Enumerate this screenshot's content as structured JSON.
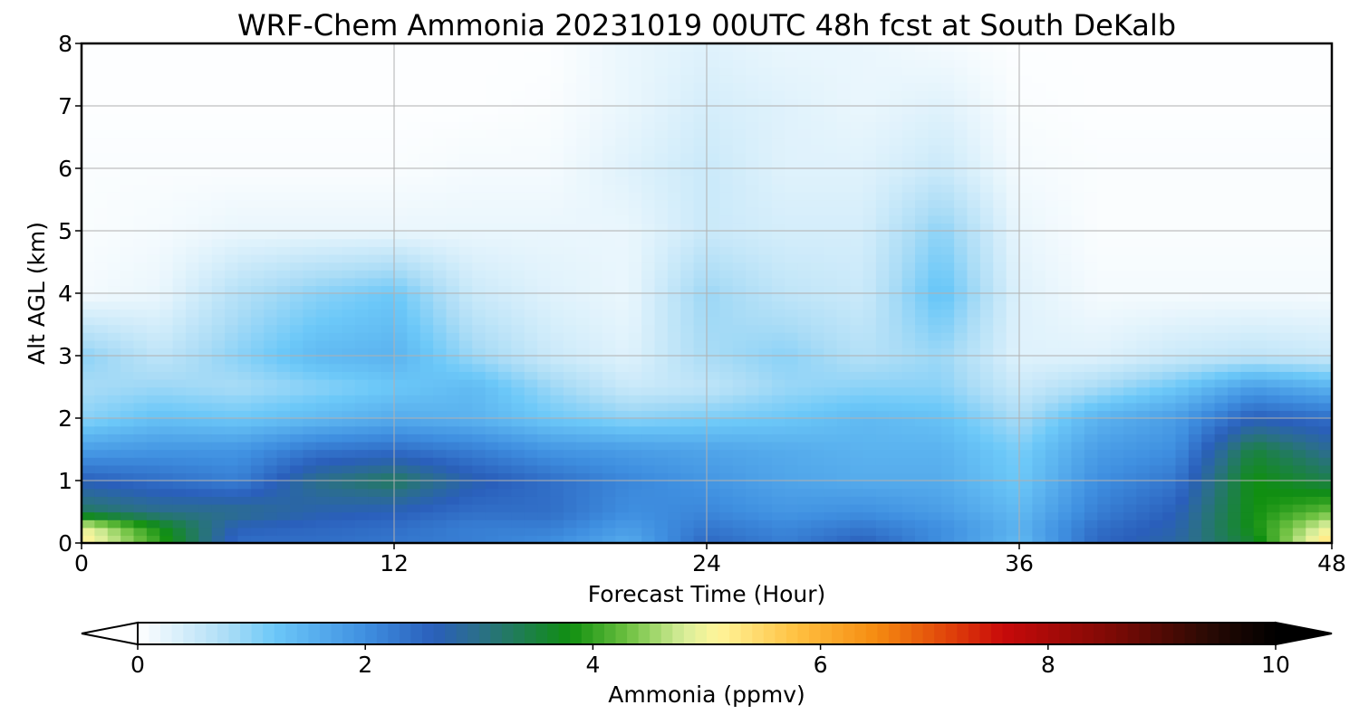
{
  "chart_data": {
    "type": "heatmap",
    "title": "WRF-Chem Ammonia  20231019 00UTC 48h fcst at South DeKalb",
    "xlabel": "Forecast Time (Hour)",
    "ylabel": "Alt AGL (km)",
    "xlim": [
      0,
      48
    ],
    "ylim": [
      0,
      8
    ],
    "xticks": [
      0,
      12,
      24,
      36,
      48
    ],
    "yticks": [
      0,
      1,
      2,
      3,
      4,
      5,
      6,
      7,
      8
    ],
    "grid": true,
    "x": [
      0,
      3,
      6,
      9,
      12,
      15,
      18,
      21,
      24,
      27,
      30,
      33,
      36,
      39,
      42,
      45,
      48
    ],
    "y": [
      0,
      0.25,
      0.5,
      1,
      1.5,
      2,
      2.5,
      3,
      4,
      5,
      6,
      7,
      8
    ],
    "z": [
      [
        5.2,
        4.0,
        2.4,
        2.4,
        2.3,
        2.2,
        2.0,
        1.6,
        2.5,
        2.2,
        2.6,
        2.0,
        1.4,
        2.5,
        2.8,
        3.6,
        5.5
      ],
      [
        5.0,
        3.8,
        2.6,
        2.5,
        2.4,
        2.2,
        2.2,
        1.8,
        2.3,
        2.1,
        2.3,
        2.0,
        1.5,
        2.4,
        2.7,
        3.8,
        5.0
      ],
      [
        3.3,
        3.0,
        3.0,
        2.7,
        2.6,
        2.4,
        2.4,
        2.0,
        2.1,
        1.9,
        2.0,
        1.8,
        1.4,
        2.2,
        2.6,
        3.8,
        4.3
      ],
      [
        2.6,
        2.4,
        2.2,
        3.0,
        3.3,
        2.7,
        2.4,
        2.1,
        1.9,
        1.7,
        1.6,
        1.6,
        1.2,
        2.0,
        2.3,
        3.8,
        3.4
      ],
      [
        1.8,
        1.9,
        1.9,
        2.3,
        2.4,
        2.2,
        1.9,
        1.8,
        1.7,
        1.6,
        1.5,
        1.5,
        1.1,
        1.8,
        2.0,
        3.5,
        2.9
      ],
      [
        1.0,
        1.3,
        1.2,
        1.4,
        1.6,
        1.5,
        1.2,
        1.0,
        1.1,
        1.2,
        1.4,
        1.3,
        0.8,
        1.5,
        1.8,
        2.6,
        2.4
      ],
      [
        0.8,
        0.9,
        0.8,
        1.0,
        1.2,
        1.4,
        0.9,
        0.5,
        0.6,
        0.9,
        1.0,
        1.0,
        0.5,
        0.8,
        1.2,
        1.8,
        1.5
      ],
      [
        1.0,
        0.6,
        1.0,
        1.4,
        1.5,
        0.9,
        0.5,
        0.3,
        0.8,
        1.0,
        0.7,
        0.9,
        0.3,
        0.3,
        0.5,
        0.6,
        0.5
      ],
      [
        0.1,
        0.2,
        0.7,
        1.0,
        1.2,
        0.5,
        0.3,
        0.2,
        0.9,
        0.6,
        0.5,
        1.3,
        0.3,
        0.1,
        0.1,
        0.1,
        0.1
      ],
      [
        0.05,
        0.1,
        0.2,
        0.2,
        0.2,
        0.2,
        0.2,
        0.2,
        0.5,
        0.4,
        0.4,
        1.0,
        0.2,
        0.05,
        0.05,
        0.05,
        0.05
      ],
      [
        0.05,
        0.05,
        0.05,
        0.05,
        0.05,
        0.1,
        0.1,
        0.3,
        0.5,
        0.3,
        0.3,
        0.5,
        0.1,
        0.05,
        0.05,
        0.05,
        0.05
      ],
      [
        0.02,
        0.02,
        0.02,
        0.02,
        0.02,
        0.02,
        0.05,
        0.2,
        0.4,
        0.3,
        0.2,
        0.3,
        0.05,
        0.02,
        0.02,
        0.02,
        0.02
      ],
      [
        0.02,
        0.02,
        0.02,
        0.02,
        0.02,
        0.02,
        0.02,
        0.2,
        0.3,
        0.2,
        0.2,
        0.1,
        0.02,
        0.02,
        0.02,
        0.02,
        0.02
      ]
    ],
    "colorbar": {
      "label": "Ammonia  (ppmv)",
      "min": 0,
      "max": 10,
      "ticks": [
        0,
        2,
        4,
        6,
        8,
        10
      ],
      "extend": "both",
      "colormap": [
        [
          0,
          "#ffffff"
        ],
        [
          0.8,
          "#aadcf6"
        ],
        [
          1.2,
          "#6cc8f8"
        ],
        [
          2.0,
          "#3f8fe0"
        ],
        [
          2.6,
          "#2a5fbb"
        ],
        [
          3.0,
          "#2b6f8a"
        ],
        [
          3.8,
          "#108f10"
        ],
        [
          4.3,
          "#6cc040"
        ],
        [
          4.8,
          "#d8ee9a"
        ],
        [
          5.1,
          "#fff59a"
        ],
        [
          5.8,
          "#ffc040"
        ],
        [
          6.5,
          "#f58a10"
        ],
        [
          7.2,
          "#dd3a0a"
        ],
        [
          7.6,
          "#c80a0a"
        ],
        [
          8.6,
          "#7a0a05"
        ],
        [
          9.4,
          "#2a0a04"
        ],
        [
          10,
          "#000000"
        ]
      ]
    }
  }
}
